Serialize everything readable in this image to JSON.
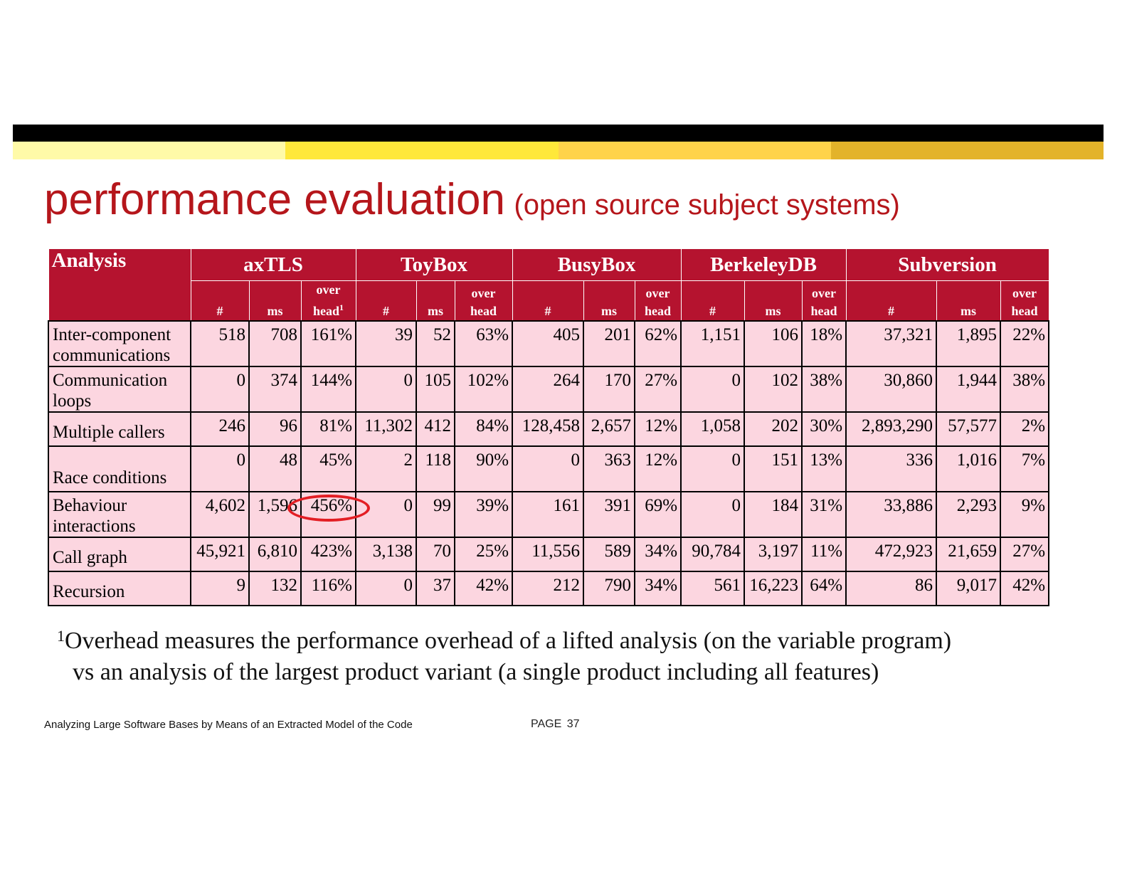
{
  "colors": {
    "title": "#b5161b",
    "header_bg": "#b5132f",
    "cell_bg": "#fcd6e0",
    "highlight_circle": "#e31e24",
    "top_bar": "#000000",
    "stripe": [
      "#fffaa8",
      "#ffe83a",
      "#ffd34a",
      "#e3b32a"
    ]
  },
  "title": {
    "main": "performance evaluation",
    "sub": "(open source subject systems)"
  },
  "table": {
    "analysis_header": "Analysis",
    "systems": [
      "axTLS",
      "ToyBox",
      "BusyBox",
      "BerkeleyDB",
      "Subversion"
    ],
    "subheaders": {
      "count": "#",
      "ms": "ms",
      "over": "over",
      "head": "head",
      "footnote_mark": "1"
    },
    "rows": [
      {
        "label": "Inter-component communications",
        "values": [
          "518",
          "708",
          "161%",
          "39",
          "52",
          "63%",
          "405",
          "201",
          "62%",
          "1,151",
          "106",
          "18%",
          "37,321",
          "1,895",
          "22%"
        ]
      },
      {
        "label": "Communication loops",
        "values": [
          "0",
          "374",
          "144%",
          "0",
          "105",
          "102%",
          "264",
          "170",
          "27%",
          "0",
          "102",
          "38%",
          "30,860",
          "1,944",
          "38%"
        ]
      },
      {
        "label": "Multiple callers",
        "values": [
          "246",
          "96",
          "81%",
          "11,302",
          "412",
          "84%",
          "128,458",
          "2,657",
          "12%",
          "1,058",
          "202",
          "30%",
          "2,893,290",
          "57,577",
          "2%"
        ]
      },
      {
        "label": "Race conditions",
        "values": [
          "0",
          "48",
          "45%",
          "2",
          "118",
          "90%",
          "0",
          "363",
          "12%",
          "0",
          "151",
          "13%",
          "336",
          "1,016",
          "7%"
        ]
      },
      {
        "label": "Behaviour interactions",
        "values": [
          "4,602",
          "1,596",
          "456%",
          "0",
          "99",
          "39%",
          "161",
          "391",
          "69%",
          "0",
          "184",
          "31%",
          "33,886",
          "2,293",
          "9%"
        ]
      },
      {
        "label": "Call graph",
        "values": [
          "45,921",
          "6,810",
          "423%",
          "3,138",
          "70",
          "25%",
          "11,556",
          "589",
          "34%",
          "90,784",
          "3,197",
          "11%",
          "472,923",
          "21,659",
          "27%"
        ]
      },
      {
        "label": "Recursion",
        "values": [
          "9",
          "132",
          "116%",
          "0",
          "37",
          "42%",
          "212",
          "790",
          "34%",
          "561",
          "16,223",
          "64%",
          "86",
          "9,017",
          "42%"
        ]
      }
    ]
  },
  "footnote": {
    "mark": "1",
    "line1": "Overhead measures the performance overhead of a lifted analysis (on the variable program)",
    "line2": "vs an analysis of the largest product variant (a single product including all features)"
  },
  "footer": {
    "left": "Analyzing Large Software Bases by Means of an Extracted Model of the Code",
    "page": "PAGE  37"
  }
}
